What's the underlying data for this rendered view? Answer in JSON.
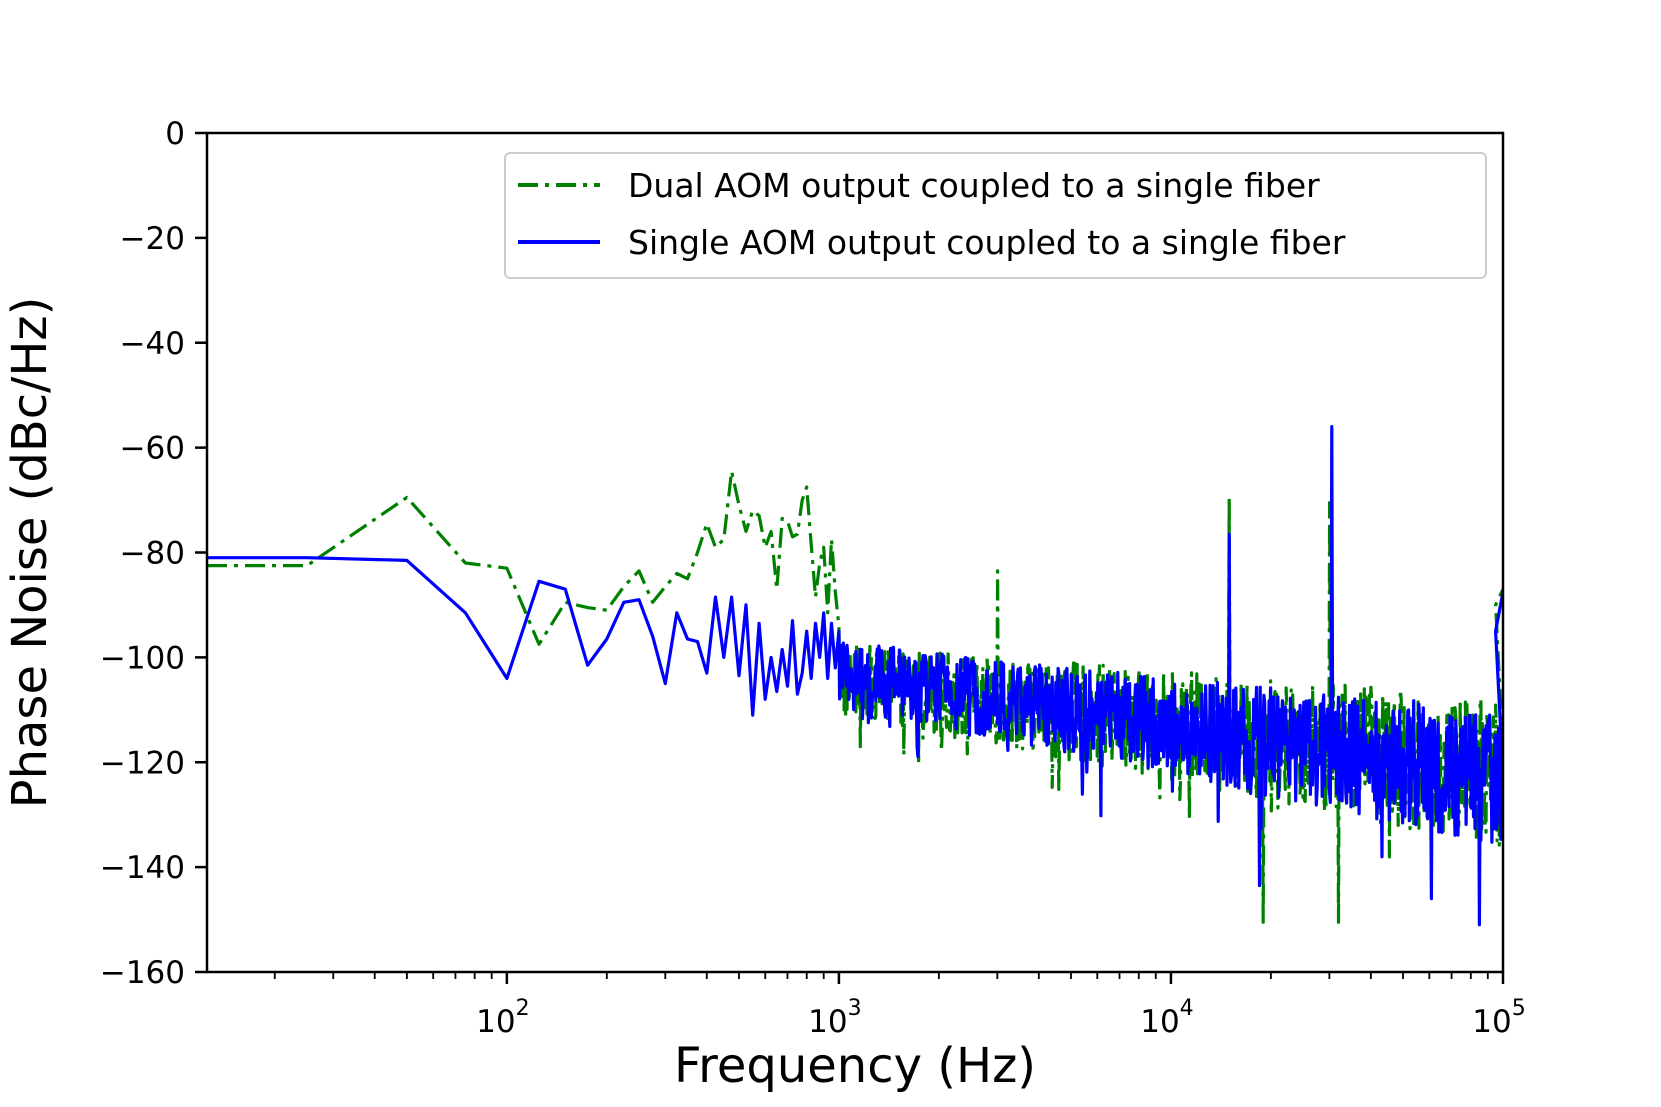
{
  "chart_data": {
    "type": "line",
    "xlabel": "Frequency (Hz)",
    "ylabel": "Phase Noise (dBc/Hz)",
    "xscale": "log",
    "xlim": [
      12.5,
      100000
    ],
    "ylim": [
      -160,
      0
    ],
    "x_ticks": [
      {
        "value": 100,
        "base": "10",
        "exp": "2"
      },
      {
        "value": 1000,
        "base": "10",
        "exp": "3"
      },
      {
        "value": 10000,
        "base": "10",
        "exp": "4"
      },
      {
        "value": 100000,
        "base": "10",
        "exp": "5"
      }
    ],
    "y_ticks": [
      {
        "value": 0,
        "label": "0"
      },
      {
        "value": -20,
        "label": "−20"
      },
      {
        "value": -40,
        "label": "−40"
      },
      {
        "value": -60,
        "label": "−60"
      },
      {
        "value": -80,
        "label": "−80"
      },
      {
        "value": -100,
        "label": "−100"
      },
      {
        "value": -120,
        "label": "−120"
      },
      {
        "value": -140,
        "label": "−140"
      },
      {
        "value": -160,
        "label": "−160"
      }
    ],
    "grid": false,
    "legend_position": "top-right",
    "series": [
      {
        "name": "Dual AOM output coupled to a single fiber",
        "color": "#008000",
        "dash": "dashdot",
        "x": [
          12.5,
          25,
          50,
          75,
          100,
          125,
          150,
          175,
          200,
          225,
          250,
          275,
          300,
          325,
          350,
          375,
          400,
          425,
          450,
          475,
          500,
          525,
          550,
          575,
          600,
          625,
          650,
          675,
          700,
          725,
          750,
          775,
          800,
          825,
          850,
          875,
          900,
          925,
          950,
          975,
          1000
        ],
        "y": [
          -82.5,
          -82.5,
          -69.5,
          -82,
          -83,
          -97.5,
          -89.5,
          -90.5,
          -91,
          -86.5,
          -83.5,
          -89.5,
          -86.5,
          -84,
          -85,
          -80,
          -74.5,
          -79,
          -77.5,
          -64.5,
          -71,
          -76,
          -72,
          -73,
          -79,
          -76,
          -87,
          -73.5,
          -74,
          -77,
          -76.5,
          -70,
          -67.5,
          -78.5,
          -88.5,
          -82,
          -79,
          -91.5,
          -77.5,
          -87.5,
          -94
        ],
        "noise": {
          "x_start": 1000,
          "x_end": 100000,
          "count": 900,
          "level_start": -104,
          "level_end": -122,
          "amplitude": 11
        },
        "spikes": [
          {
            "x": 3000,
            "y": -83.5
          },
          {
            "x": 15000,
            "y": -69.5
          },
          {
            "x": 19000,
            "y": -150.5
          },
          {
            "x": 30000,
            "y": -70.5
          },
          {
            "x": 32000,
            "y": -150.5
          }
        ],
        "end_values": [
          {
            "x": 95000,
            "y": -90
          },
          {
            "x": 100000,
            "y": -87
          }
        ]
      },
      {
        "name": "Single AOM output coupled to a single fiber",
        "color": "#0000ff",
        "dash": "solid",
        "x": [
          12.5,
          25,
          50,
          75,
          100,
          125,
          150,
          175,
          200,
          225,
          250,
          275,
          300,
          325,
          350,
          375,
          400,
          425,
          450,
          475,
          500,
          525,
          550,
          575,
          600,
          625,
          650,
          675,
          700,
          725,
          750,
          775,
          800,
          825,
          850,
          875,
          900,
          925,
          950,
          975,
          1000
        ],
        "y": [
          -81,
          -81,
          -81.5,
          -91.5,
          -104,
          -85.5,
          -87,
          -101.5,
          -96.5,
          -89.5,
          -89,
          -96,
          -105,
          -91.5,
          -96.5,
          -97,
          -103,
          -88.5,
          -100,
          -88.5,
          -103.5,
          -90,
          -111,
          -93.5,
          -108,
          -100,
          -106.5,
          -98.5,
          -105.5,
          -93,
          -107,
          -103,
          -95,
          -104,
          -93.5,
          -100,
          -91.5,
          -104,
          -93.5,
          -102,
          -95
        ],
        "noise": {
          "x_start": 1000,
          "x_end": 100000,
          "count": 900,
          "level_start": -103,
          "level_end": -123,
          "amplitude": 10
        },
        "spikes": [
          {
            "x": 15000,
            "y": -76.5
          },
          {
            "x": 18500,
            "y": -143.5
          },
          {
            "x": 30500,
            "y": -56
          },
          {
            "x": 61000,
            "y": -146
          },
          {
            "x": 85000,
            "y": -151
          }
        ],
        "end_values": [
          {
            "x": 95000,
            "y": -95
          },
          {
            "x": 100000,
            "y": -87.5
          }
        ]
      }
    ]
  }
}
